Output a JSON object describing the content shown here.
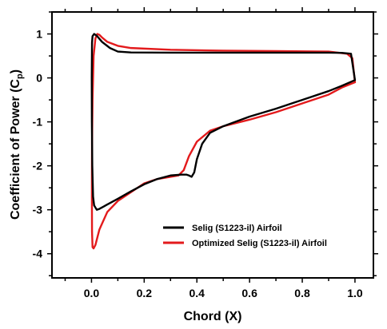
{
  "chart_data": {
    "type": "line",
    "title": "",
    "xlabel": "Chord (X)",
    "ylabel_main": "Coefficient of Power (C",
    "ylabel_sub": "p",
    "ylabel_close": ")",
    "xlim": [
      -0.15,
      1.07
    ],
    "ylim": [
      -4.55,
      1.5
    ],
    "x_ticks": [
      0.0,
      0.2,
      0.4,
      0.6,
      0.8,
      1.0
    ],
    "x_tick_labels": [
      "0.0",
      "0.2",
      "0.4",
      "0.6",
      "0.8",
      "1.0"
    ],
    "y_ticks": [
      1,
      0,
      -1,
      -2,
      -3,
      -4
    ],
    "y_tick_labels": [
      "1",
      "0",
      "-1",
      "-2",
      "-3",
      "-4"
    ],
    "grid": false,
    "legend_position": "bottom-right",
    "series": [
      {
        "name": "Selig (S1223-il) Airfoil",
        "color": "#000000",
        "points": [
          [
            1.0,
            -0.05
          ],
          [
            0.985,
            0.55
          ],
          [
            0.95,
            0.57
          ],
          [
            0.9,
            0.575
          ],
          [
            0.7,
            0.575
          ],
          [
            0.5,
            0.575
          ],
          [
            0.3,
            0.575
          ],
          [
            0.15,
            0.58
          ],
          [
            0.1,
            0.6
          ],
          [
            0.07,
            0.68
          ],
          [
            0.04,
            0.82
          ],
          [
            0.02,
            0.96
          ],
          [
            0.01,
            1.0
          ],
          [
            0.004,
            0.95
          ],
          [
            0.002,
            0.8
          ],
          [
            0.001,
            0.0
          ],
          [
            0.0015,
            -1.0
          ],
          [
            0.003,
            -2.0
          ],
          [
            0.006,
            -2.7
          ],
          [
            0.01,
            -2.9
          ],
          [
            0.02,
            -3.0
          ],
          [
            0.03,
            -2.98
          ],
          [
            0.06,
            -2.88
          ],
          [
            0.1,
            -2.75
          ],
          [
            0.15,
            -2.58
          ],
          [
            0.2,
            -2.42
          ],
          [
            0.25,
            -2.3
          ],
          [
            0.3,
            -2.22
          ],
          [
            0.34,
            -2.2
          ],
          [
            0.36,
            -2.2
          ],
          [
            0.37,
            -2.22
          ],
          [
            0.38,
            -2.25
          ],
          [
            0.39,
            -2.15
          ],
          [
            0.4,
            -1.85
          ],
          [
            0.42,
            -1.5
          ],
          [
            0.45,
            -1.25
          ],
          [
            0.5,
            -1.1
          ],
          [
            0.6,
            -0.88
          ],
          [
            0.7,
            -0.7
          ],
          [
            0.8,
            -0.5
          ],
          [
            0.9,
            -0.3
          ],
          [
            0.95,
            -0.18
          ],
          [
            1.0,
            -0.05
          ]
        ]
      },
      {
        "name": "Optimized Selig (S1223-il) Airfoil",
        "color": "#e31a1c",
        "points": [
          [
            1.0,
            -0.1
          ],
          [
            0.99,
            0.45
          ],
          [
            0.97,
            0.55
          ],
          [
            0.9,
            0.6
          ],
          [
            0.7,
            0.61
          ],
          [
            0.5,
            0.62
          ],
          [
            0.3,
            0.64
          ],
          [
            0.15,
            0.68
          ],
          [
            0.1,
            0.73
          ],
          [
            0.06,
            0.82
          ],
          [
            0.04,
            0.92
          ],
          [
            0.03,
            0.98
          ],
          [
            0.022,
            1.0
          ],
          [
            0.015,
            0.9
          ],
          [
            0.008,
            0.5
          ],
          [
            0.004,
            -0.5
          ],
          [
            0.002,
            -1.5
          ],
          [
            0.0015,
            -2.7
          ],
          [
            0.002,
            -3.5
          ],
          [
            0.004,
            -3.85
          ],
          [
            0.008,
            -3.88
          ],
          [
            0.015,
            -3.8
          ],
          [
            0.03,
            -3.45
          ],
          [
            0.06,
            -3.05
          ],
          [
            0.1,
            -2.8
          ],
          [
            0.15,
            -2.6
          ],
          [
            0.2,
            -2.4
          ],
          [
            0.25,
            -2.3
          ],
          [
            0.3,
            -2.25
          ],
          [
            0.33,
            -2.22
          ],
          [
            0.35,
            -2.1
          ],
          [
            0.37,
            -1.78
          ],
          [
            0.4,
            -1.45
          ],
          [
            0.45,
            -1.2
          ],
          [
            0.5,
            -1.1
          ],
          [
            0.6,
            -0.95
          ],
          [
            0.7,
            -0.78
          ],
          [
            0.8,
            -0.58
          ],
          [
            0.9,
            -0.38
          ],
          [
            0.95,
            -0.22
          ],
          [
            1.0,
            -0.1
          ]
        ]
      }
    ]
  }
}
